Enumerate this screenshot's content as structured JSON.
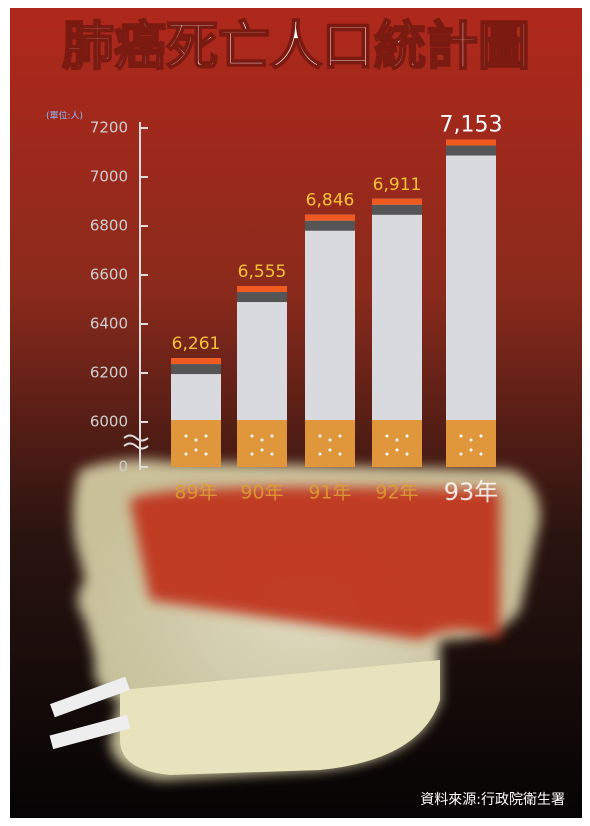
{
  "chart_data": {
    "type": "bar",
    "title": "肺癌死亡人口統計圖",
    "unit_label": "(單位:人)",
    "categories": [
      "89年",
      "90年",
      "91年",
      "92年",
      "93年"
    ],
    "values": [
      6261,
      6555,
      6846,
      6911,
      7153
    ],
    "value_labels": [
      "6,261",
      "6,555",
      "6,846",
      "6,911",
      "7,153"
    ],
    "color": "#d8dadf",
    "ylim": [
      0,
      7200
    ],
    "axis_break": [
      0,
      6000
    ],
    "yticks": [
      0,
      6000,
      6200,
      6400,
      6600,
      6800,
      7000,
      7200
    ],
    "source": "資料來源:行政院衛生署"
  }
}
